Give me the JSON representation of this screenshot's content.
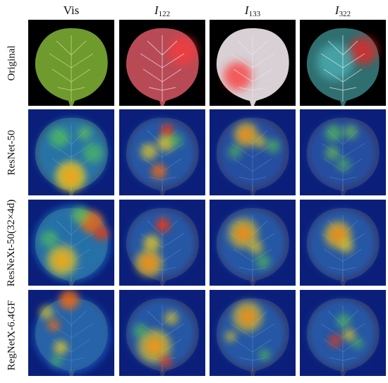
{
  "columns": [
    {
      "key": "vis",
      "label": "Vis",
      "base": "",
      "sub": ""
    },
    {
      "key": "i122",
      "label": "",
      "base": "I",
      "sub": "122"
    },
    {
      "key": "i133",
      "label": "",
      "base": "I",
      "sub": "133"
    },
    {
      "key": "i322",
      "label": "",
      "base": "I",
      "sub": "322"
    }
  ],
  "rows": [
    {
      "key": "original",
      "label": "Original"
    },
    {
      "key": "resnet",
      "label": "ResNet-50"
    },
    {
      "key": "resnext",
      "label": "ResNeXt-50(32×4d)"
    },
    {
      "key": "regnet",
      "label": "RegNetX-6.4GF"
    }
  ],
  "colors": {
    "vis_leaf": "#6f9a2e",
    "i122_leaf": "#b84a55",
    "i133_leaf": "#d8d0d4",
    "i322_leaf": "#2f6f70",
    "heat_background": "#0b1f7a",
    "heat_hot": "#c01a10"
  }
}
